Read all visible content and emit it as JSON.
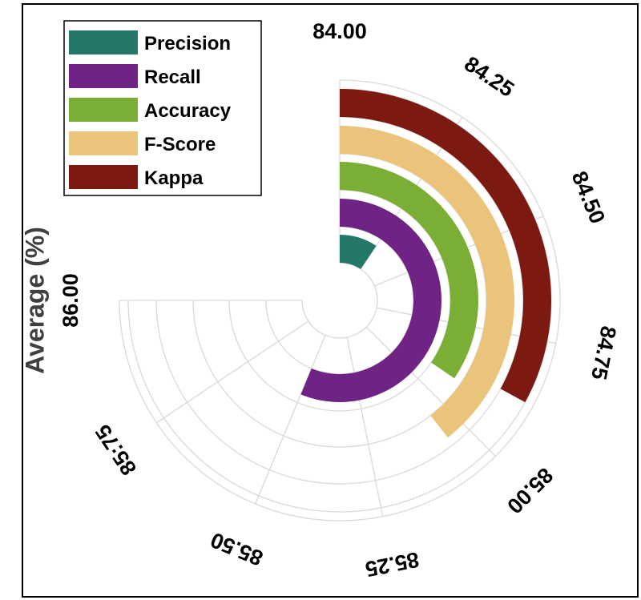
{
  "chart_data": {
    "type": "radial-bar",
    "ylabel": "Average (%)",
    "range": [
      84.0,
      86.0
    ],
    "ticks": [
      "84.00",
      "84.25",
      "84.50",
      "84.75",
      "85.00",
      "85.25",
      "85.50",
      "85:75",
      "86.00"
    ],
    "tick_values": [
      84.0,
      84.25,
      84.5,
      84.75,
      85.0,
      85.25,
      85.5,
      85.75,
      86.0
    ],
    "legend_position": "top-left",
    "grid": true,
    "series": [
      {
        "name": "Precision",
        "value": 84.25,
        "color": "#24786a"
      },
      {
        "name": "Recall",
        "value": 85.5,
        "color": "#6f2384"
      },
      {
        "name": "Accuracy",
        "value": 84.92,
        "color": "#7aae35"
      },
      {
        "name": "F-Score",
        "value": 85.05,
        "color": "#eac47a"
      },
      {
        "name": "Kappa",
        "value": 84.88,
        "color": "#7c1a12"
      }
    ]
  }
}
